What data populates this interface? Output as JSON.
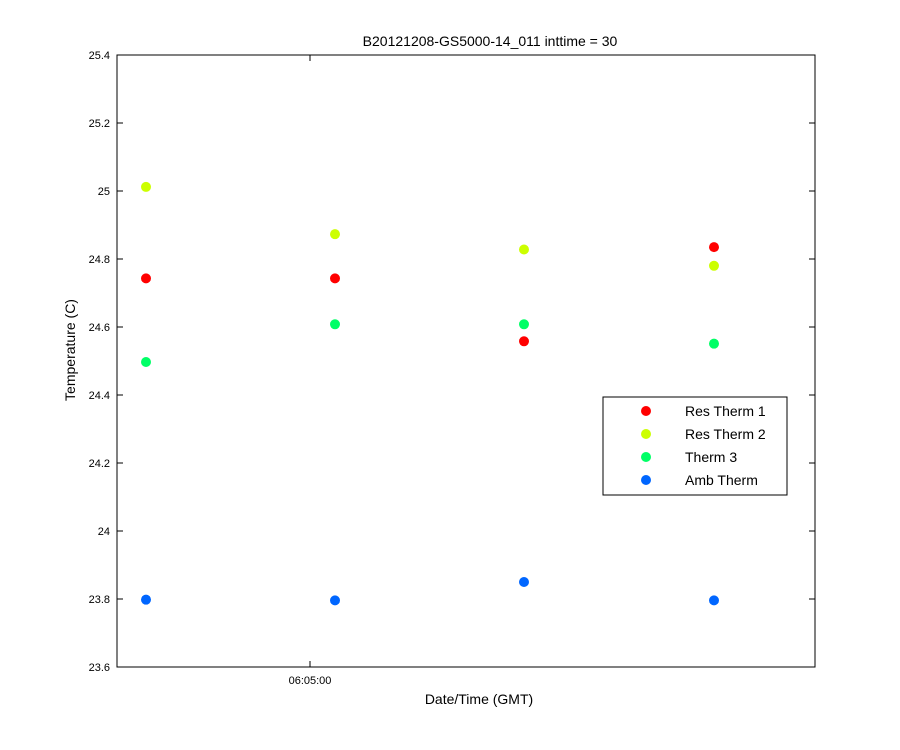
{
  "chart_data": {
    "type": "scatter",
    "title": "B20121208-GS5000-14_011 inttime = 30",
    "xlabel": "Date/Time (GMT)",
    "ylabel": "Temperature (C)",
    "x_tick_labels": [
      "06:05:00"
    ],
    "ylim": [
      23.6,
      25.4
    ],
    "y_ticks": [
      "23.6",
      "23.8",
      "24",
      "24.2",
      "24.4",
      "24.6",
      "24.8",
      "25",
      "25.2",
      "25.4"
    ],
    "grid": false,
    "legend_position": "right",
    "series": [
      {
        "name": "Res Therm 1",
        "color": "#ff0000",
        "values": [
          24.743,
          24.743,
          24.558,
          24.835
        ]
      },
      {
        "name": "Res Therm 2",
        "color": "#ccff00",
        "values": [
          25.012,
          24.873,
          24.828,
          24.78
        ]
      },
      {
        "name": "Therm 3",
        "color": "#00ff66",
        "values": [
          24.497,
          24.608,
          24.608,
          24.551
        ]
      },
      {
        "name": "Amb Therm",
        "color": "#0066ff",
        "values": [
          23.798,
          23.796,
          23.85,
          23.796
        ]
      }
    ]
  }
}
